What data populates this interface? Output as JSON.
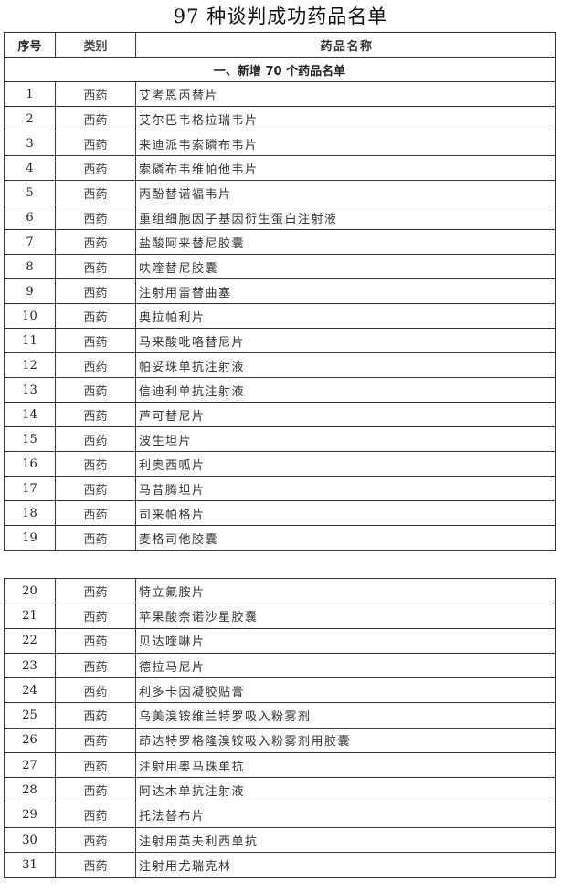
{
  "title": "97 种谈判成功药品名单",
  "headers": {
    "no": "序号",
    "category": "类别",
    "name": "药品名称"
  },
  "section": "一、新增 70 个药品名单",
  "part1": [
    {
      "no": "1",
      "category": "西药",
      "name": "艾考恩丙替片"
    },
    {
      "no": "2",
      "category": "西药",
      "name": "艾尔巴韦格拉瑞韦片"
    },
    {
      "no": "3",
      "category": "西药",
      "name": "来迪派韦索磷布韦片"
    },
    {
      "no": "4",
      "category": "西药",
      "name": "索磷布韦维帕他韦片"
    },
    {
      "no": "5",
      "category": "西药",
      "name": "丙酚替诺福韦片"
    },
    {
      "no": "6",
      "category": "西药",
      "name": "重组细胞因子基因衍生蛋白注射液"
    },
    {
      "no": "7",
      "category": "西药",
      "name": "盐酸阿来替尼胶囊"
    },
    {
      "no": "8",
      "category": "西药",
      "name": "呋喹替尼胶囊"
    },
    {
      "no": "9",
      "category": "西药",
      "name": "注射用雷替曲塞"
    },
    {
      "no": "10",
      "category": "西药",
      "name": "奥拉帕利片"
    },
    {
      "no": "11",
      "category": "西药",
      "name": "马来酸吡咯替尼片"
    },
    {
      "no": "12",
      "category": "西药",
      "name": "帕妥珠单抗注射液"
    },
    {
      "no": "13",
      "category": "西药",
      "name": "信迪利单抗注射液"
    },
    {
      "no": "14",
      "category": "西药",
      "name": "芦可替尼片"
    },
    {
      "no": "15",
      "category": "西药",
      "name": "波生坦片"
    },
    {
      "no": "16",
      "category": "西药",
      "name": "利奥西呱片"
    },
    {
      "no": "17",
      "category": "西药",
      "name": "马昔腾坦片"
    },
    {
      "no": "18",
      "category": "西药",
      "name": "司来帕格片"
    },
    {
      "no": "19",
      "category": "西药",
      "name": "麦格司他胶囊"
    }
  ],
  "part2": [
    {
      "no": "20",
      "category": "西药",
      "name": "特立氟胺片"
    },
    {
      "no": "21",
      "category": "西药",
      "name": "苹果酸奈诺沙星胶囊"
    },
    {
      "no": "22",
      "category": "西药",
      "name": "贝达喹啉片"
    },
    {
      "no": "23",
      "category": "西药",
      "name": "德拉马尼片"
    },
    {
      "no": "24",
      "category": "西药",
      "name": "利多卡因凝胶贴膏"
    },
    {
      "no": "25",
      "category": "西药",
      "name": "乌美溴铵维兰特罗吸入粉雾剂"
    },
    {
      "no": "26",
      "category": "西药",
      "name": "茚达特罗格隆溴铵吸入粉雾剂用胶囊"
    },
    {
      "no": "27",
      "category": "西药",
      "name": "注射用奥马珠单抗"
    },
    {
      "no": "28",
      "category": "西药",
      "name": "阿达木单抗注射液"
    },
    {
      "no": "29",
      "category": "西药",
      "name": "托法替布片"
    },
    {
      "no": "30",
      "category": "西药",
      "name": "注射用英夫利西单抗"
    },
    {
      "no": "31",
      "category": "西药",
      "name": "注射用尤瑞克林"
    }
  ]
}
